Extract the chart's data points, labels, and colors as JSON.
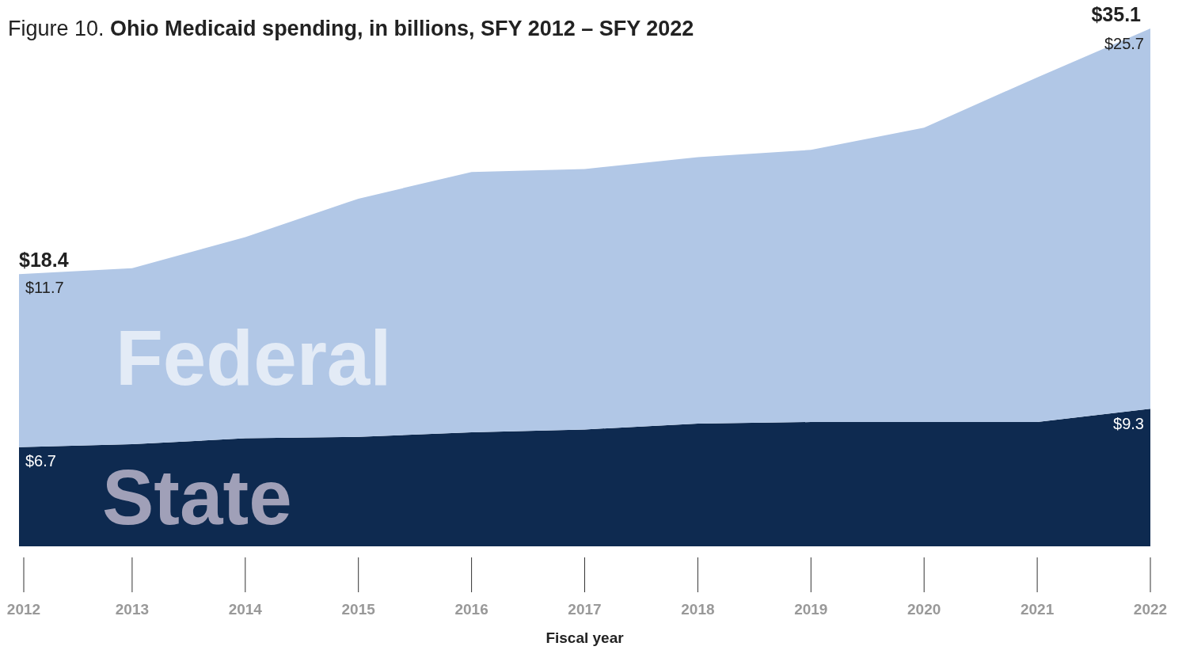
{
  "chart_data": {
    "type": "area",
    "stacked": true,
    "title": "Figure 10.",
    "subtitle": "Ohio Medicaid spending, in billions, SFY 2012 – SFY 2022",
    "xlabel": "Fiscal year",
    "categories": [
      "2012",
      "2013",
      "2014",
      "2015",
      "2016",
      "2017",
      "2018",
      "2019",
      "2020",
      "2021",
      "2022"
    ],
    "series": [
      {
        "name": "State",
        "color": "#0e2a50",
        "values": [
          6.7,
          6.9,
          7.3,
          7.4,
          7.7,
          7.9,
          8.3,
          8.4,
          8.4,
          8.4,
          9.3
        ],
        "value_labels": [
          "$6.7",
          null,
          null,
          null,
          null,
          null,
          null,
          null,
          null,
          null,
          "$9.3"
        ]
      },
      {
        "name": "Federal",
        "color": "#b1c7e6",
        "values": [
          11.7,
          11.9,
          13.6,
          16.1,
          17.6,
          17.6,
          18.0,
          18.4,
          19.9,
          23.3,
          25.7
        ],
        "value_labels": [
          "$11.7",
          null,
          null,
          null,
          null,
          null,
          null,
          null,
          null,
          null,
          "$25.7"
        ]
      }
    ],
    "totals": [
      "$18.4",
      null,
      null,
      null,
      null,
      null,
      null,
      null,
      null,
      null,
      "$35.1"
    ]
  }
}
